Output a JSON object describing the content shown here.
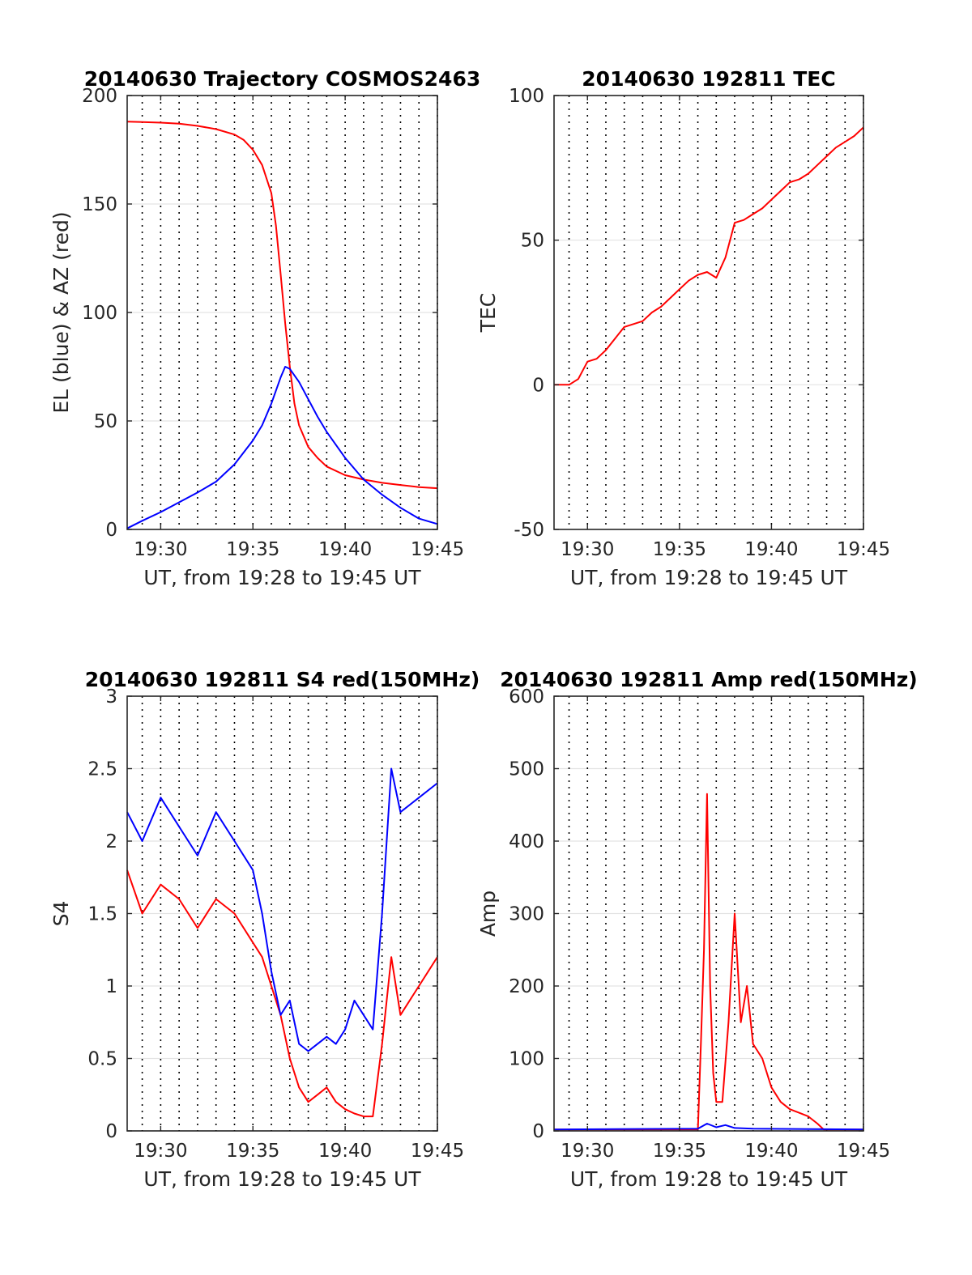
{
  "chart_data": [
    {
      "type": "line",
      "title": "20140630 Trajectory COSMOS2463",
      "xlabel": "UT, from 19:28 to 19:45 UT",
      "ylabel": "EL (blue) & AZ (red)",
      "xlim": [
        "19:28:11",
        "19:45:00"
      ],
      "ylim": [
        0,
        200
      ],
      "xticks": [
        "19:30",
        "19:35",
        "19:40",
        "19:45"
      ],
      "yticks": [
        0,
        50,
        100,
        150,
        200
      ],
      "grid": true,
      "series": [
        {
          "color": "#ff0000",
          "x": [
            "19:28:11",
            "19:29",
            "19:30",
            "19:31",
            "19:32",
            "19:33",
            "19:34",
            "19:34:30",
            "19:35",
            "19:35:30",
            "19:36",
            "19:36:15",
            "19:36:30",
            "19:36:45",
            "19:37",
            "19:37:15",
            "19:37:30",
            "19:38",
            "19:38:30",
            "19:39",
            "19:40",
            "19:41",
            "19:42",
            "19:43",
            "19:44",
            "19:45"
          ],
          "y": [
            188,
            187.8,
            187.5,
            187,
            186,
            184.5,
            182,
            179.5,
            175,
            168,
            155,
            140,
            118,
            95,
            75,
            58,
            48,
            38,
            33,
            29,
            25,
            23,
            21.5,
            20.5,
            19.5,
            19
          ]
        },
        {
          "color": "#0000ff",
          "x": [
            "19:28:11",
            "19:29",
            "19:30",
            "19:31",
            "19:32",
            "19:33",
            "19:34",
            "19:35",
            "19:35:30",
            "19:36",
            "19:36:30",
            "19:36:45",
            "19:37",
            "19:37:30",
            "19:38",
            "19:38:30",
            "19:39",
            "19:40",
            "19:41",
            "19:42",
            "19:43",
            "19:44",
            "19:45"
          ],
          "y": [
            0.5,
            4,
            8,
            12.5,
            17,
            22,
            30,
            41,
            48,
            58,
            70,
            75,
            74,
            68,
            60,
            52,
            45,
            33,
            23,
            16,
            10,
            5,
            2.5
          ]
        }
      ]
    },
    {
      "type": "line",
      "title": "20140630 192811 TEC",
      "xlabel": "UT, from 19:28 to 19:45 UT",
      "ylabel": "TEC",
      "xlim": [
        "19:28:11",
        "19:45:00"
      ],
      "ylim": [
        -50,
        100
      ],
      "xticks": [
        "19:30",
        "19:35",
        "19:40",
        "19:45"
      ],
      "yticks": [
        -50,
        0,
        50,
        100
      ],
      "grid": true,
      "series": [
        {
          "color": "#ff0000",
          "x": [
            "19:28:11",
            "19:29",
            "19:29:30",
            "19:30",
            "19:30:30",
            "19:31",
            "19:31:30",
            "19:32",
            "19:32:30",
            "19:33",
            "19:33:30",
            "19:34",
            "19:34:30",
            "19:35",
            "19:35:30",
            "19:36",
            "19:36:30",
            "19:37",
            "19:37:30",
            "19:37:45",
            "19:38",
            "19:38:30",
            "19:39",
            "19:39:30",
            "19:40",
            "19:40:30",
            "19:41",
            "19:41:30",
            "19:42",
            "19:42:30",
            "19:43",
            "19:43:30",
            "19:44",
            "19:44:30",
            "19:45"
          ],
          "y": [
            0,
            0,
            2,
            8,
            9,
            12,
            16,
            20,
            21,
            22,
            25,
            27,
            30,
            33,
            36,
            38,
            39,
            37,
            44,
            50,
            56,
            57,
            59,
            61,
            64,
            67,
            70,
            71,
            73,
            76,
            79,
            82,
            84,
            86,
            89
          ]
        }
      ]
    },
    {
      "type": "line",
      "title": "20140630 192811 S4 red(150MHz)",
      "xlabel": "UT, from 19:28 to 19:45 UT",
      "ylabel": "S4",
      "xlim": [
        "19:28:11",
        "19:45:00"
      ],
      "ylim": [
        0,
        3
      ],
      "xticks": [
        "19:30",
        "19:35",
        "19:40",
        "19:45"
      ],
      "yticks": [
        0,
        0.5,
        1,
        1.5,
        2,
        2.5,
        3
      ],
      "grid": true,
      "series": [
        {
          "color": "#ff0000",
          "x": [
            "19:28:11",
            "19:29",
            "19:30",
            "19:31",
            "19:32",
            "19:33",
            "19:34",
            "19:35",
            "19:35:30",
            "19:36",
            "19:36:30",
            "19:37",
            "19:37:30",
            "19:38",
            "19:38:30",
            "19:39",
            "19:39:30",
            "19:40",
            "19:40:30",
            "19:41",
            "19:41:30",
            "19:42",
            "19:42:30",
            "19:43",
            "19:44",
            "19:45"
          ],
          "y": [
            1.8,
            1.5,
            1.7,
            1.6,
            1.4,
            1.6,
            1.5,
            1.3,
            1.2,
            1.0,
            0.8,
            0.5,
            0.3,
            0.2,
            0.25,
            0.3,
            0.2,
            0.15,
            0.12,
            0.1,
            0.1,
            0.6,
            1.2,
            0.8,
            1.0,
            1.2
          ]
        },
        {
          "color": "#0000ff",
          "x": [
            "19:28:11",
            "19:29",
            "19:30",
            "19:31",
            "19:32",
            "19:33",
            "19:34",
            "19:35",
            "19:35:30",
            "19:36",
            "19:36:30",
            "19:37",
            "19:37:30",
            "19:38",
            "19:38:30",
            "19:39",
            "19:39:30",
            "19:40",
            "19:40:30",
            "19:41",
            "19:41:30",
            "19:42",
            "19:42:30",
            "19:43",
            "19:44",
            "19:45"
          ],
          "y": [
            2.2,
            2.0,
            2.3,
            2.1,
            1.9,
            2.2,
            2.0,
            1.8,
            1.5,
            1.1,
            0.8,
            0.9,
            0.6,
            0.55,
            0.6,
            0.65,
            0.6,
            0.7,
            0.9,
            0.8,
            0.7,
            1.5,
            2.5,
            2.2,
            2.3,
            2.4
          ]
        }
      ]
    },
    {
      "type": "line",
      "title": "20140630 192811 Amp red(150MHz)",
      "xlabel": "UT, from 19:28 to 19:45 UT",
      "ylabel": "Amp",
      "xlim": [
        "19:28:11",
        "19:45:00"
      ],
      "ylim": [
        0,
        600
      ],
      "xticks": [
        "19:30",
        "19:35",
        "19:40",
        "19:45"
      ],
      "yticks": [
        0,
        100,
        200,
        300,
        400,
        500,
        600
      ],
      "grid": true,
      "series": [
        {
          "color": "#ff0000",
          "x": [
            "19:28:11",
            "19:36",
            "19:36:10",
            "19:36:20",
            "19:36:30",
            "19:36:40",
            "19:36:50",
            "19:37",
            "19:37:20",
            "19:37:40",
            "19:38",
            "19:38:20",
            "19:38:40",
            "19:39",
            "19:39:30",
            "19:40",
            "19:40:30",
            "19:41",
            "19:41:30",
            "19:42",
            "19:42:30",
            "19:42:50",
            "19:45"
          ],
          "y": [
            2,
            2,
            120,
            250,
            465,
            200,
            80,
            40,
            40,
            150,
            300,
            150,
            200,
            120,
            100,
            60,
            40,
            30,
            25,
            20,
            10,
            2,
            2
          ]
        },
        {
          "color": "#0000ff",
          "x": [
            "19:28:11",
            "19:36",
            "19:36:30",
            "19:37",
            "19:37:30",
            "19:38",
            "19:39",
            "19:45"
          ],
          "y": [
            2,
            3,
            10,
            5,
            8,
            4,
            3,
            2
          ]
        }
      ]
    }
  ]
}
